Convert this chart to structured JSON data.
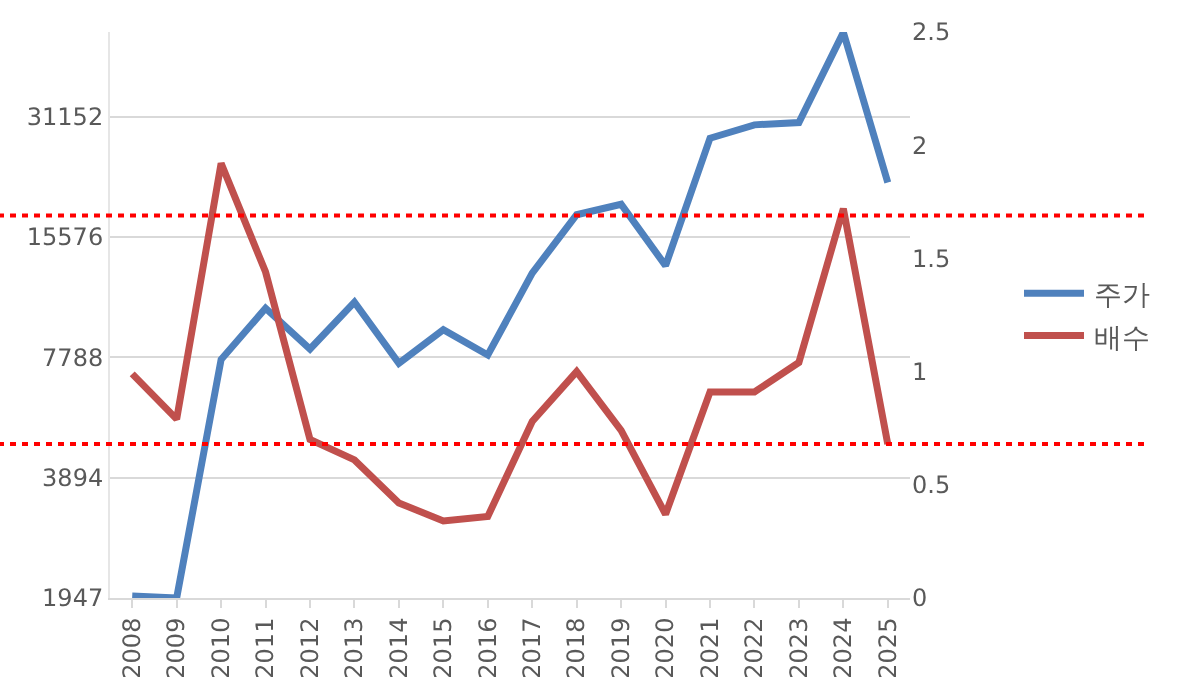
{
  "chart_data": {
    "type": "line",
    "categories": [
      "2008",
      "2009",
      "2010",
      "2011",
      "2012",
      "2013",
      "2014",
      "2015",
      "2016",
      "2017",
      "2018",
      "2019",
      "2020",
      "2021",
      "2022",
      "2023",
      "2024",
      "2025"
    ],
    "series": [
      {
        "name": "주가",
        "color": "#4f81bd",
        "values": [
          1970,
          1947,
          7690,
          10330,
          8170,
          10700,
          7520,
          9130,
          7890,
          12650,
          17700,
          18800,
          13200,
          27500,
          29700,
          30100,
          50600,
          21300
        ]
      },
      {
        "name": "배수",
        "color": "#c0504d",
        "axis": "y2",
        "values": [
          0.99,
          0.79,
          1.92,
          1.44,
          0.7,
          0.61,
          0.42,
          0.34,
          0.36,
          0.78,
          1.0,
          0.74,
          0.37,
          0.91,
          0.91,
          1.04,
          1.72,
          0.68
        ]
      }
    ],
    "log": "y",
    "ylim": [
      1947,
      50700
    ],
    "yticks": [
      1947,
      3894,
      7788,
      15576,
      31152
    ],
    "y2lim": [
      0,
      2.5
    ],
    "y2ticks": [
      0,
      0.5,
      1,
      1.5,
      2,
      2.5
    ],
    "ref_lines": [
      {
        "axis": "y2",
        "value": 1.69,
        "label": null,
        "color": "#ff0000",
        "line_style": "dotted"
      },
      {
        "axis": "y2",
        "value": 0.68,
        "label": null,
        "color": "#ff0000",
        "line_style": "dotted"
      }
    ],
    "grid": "y",
    "legend": "right",
    "marker": "none",
    "line_style": "solid"
  }
}
